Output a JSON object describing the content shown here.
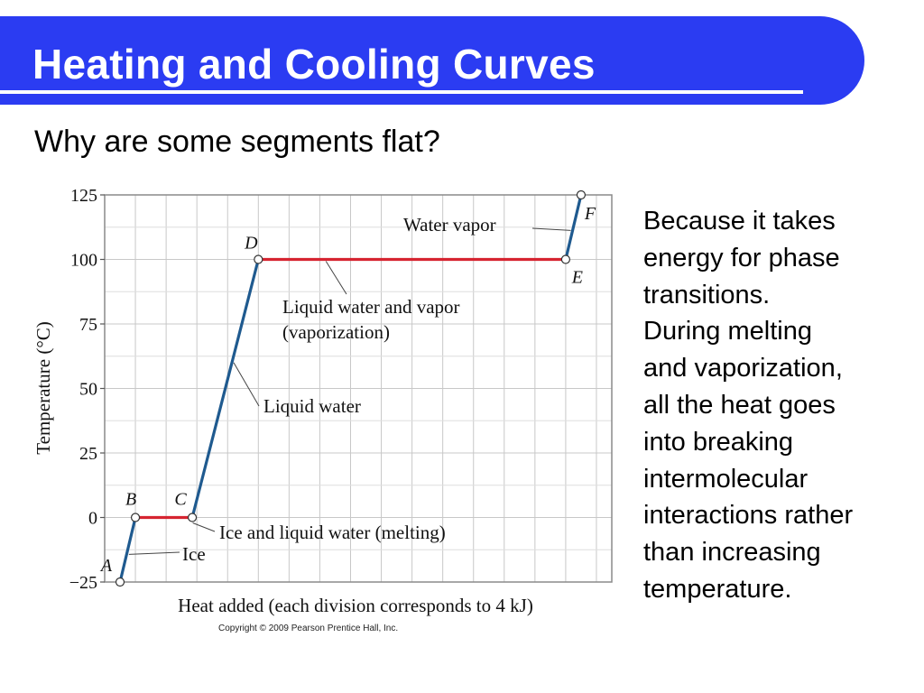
{
  "slide": {
    "title": "Heating and Cooling Curves",
    "subtitle": "Why are some segments flat?",
    "body_lines": [
      "Because it takes",
      "energy for phase",
      "transitions.",
      "During melting",
      "and vaporization,",
      "all the heat goes",
      "into breaking",
      "intermolecular",
      "interactions rather",
      "than increasing",
      "temperature."
    ],
    "copyright": "Copyright © 2009 Pearson Prentice Hall, Inc.",
    "colors": {
      "title_bar": "#2b3cf2",
      "sloped_segment": "#1f5a8f",
      "flat_segment": "#d62430",
      "grid": "#c8c8c8"
    }
  },
  "chart_data": {
    "type": "line",
    "xlabel": "Heat added (each division corresponds to 4 kJ)",
    "ylabel": "Temperature (°C)",
    "ylim": [
      -25,
      125
    ],
    "yticks": [
      -25,
      0,
      25,
      50,
      75,
      100,
      125
    ],
    "ytick_labels": [
      "−25",
      "0",
      "25",
      "50",
      "75",
      "100",
      "125"
    ],
    "xlim_divisions": [
      0,
      16.5
    ],
    "x_tick_labels_shown": false,
    "grid": true,
    "points": [
      {
        "label": "A",
        "x": 0.5,
        "y": -25
      },
      {
        "label": "B",
        "x": 1.0,
        "y": 0
      },
      {
        "label": "C",
        "x": 2.85,
        "y": 0
      },
      {
        "label": "D",
        "x": 5.0,
        "y": 100
      },
      {
        "label": "E",
        "x": 15.0,
        "y": 100
      },
      {
        "label": "F",
        "x": 15.5,
        "y": 125
      }
    ],
    "segments": [
      {
        "from": "A",
        "to": "B",
        "phase": "sloped",
        "label": "Ice"
      },
      {
        "from": "B",
        "to": "C",
        "phase": "flat",
        "label": "Ice and liquid water (melting)"
      },
      {
        "from": "C",
        "to": "D",
        "phase": "sloped",
        "label": "Liquid water"
      },
      {
        "from": "D",
        "to": "E",
        "phase": "flat",
        "label": "Liquid water and vapor (vaporization)"
      },
      {
        "from": "E",
        "to": "F",
        "phase": "sloped",
        "label": "Water vapor"
      }
    ],
    "annotation_lines": {
      "vaporization": [
        "Liquid water and vapor",
        "(vaporization)"
      ]
    }
  }
}
